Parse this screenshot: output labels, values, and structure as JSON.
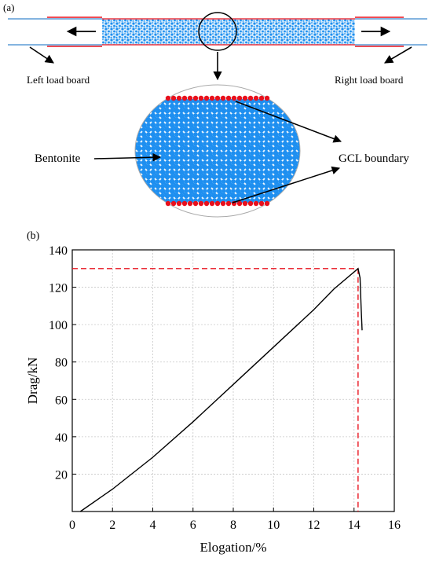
{
  "panel_a": {
    "label": "(a)",
    "left_board_label": "Left load board",
    "right_board_label": "Right load board",
    "bentonite_label": "Bentonite",
    "boundary_label": "GCL boundary",
    "colors": {
      "bentonite": "#1e8ff0",
      "boundary": "#e8101c",
      "board_line": "#5b9bd5"
    }
  },
  "panel_b": {
    "label": "(b)"
  },
  "chart_data": {
    "type": "line",
    "xlabel": "Elogation/%",
    "ylabel": "Drag/kN",
    "xlim": [
      0,
      16
    ],
    "ylim": [
      0,
      140
    ],
    "xticks": [
      0,
      2,
      4,
      6,
      8,
      10,
      12,
      14,
      16
    ],
    "yticks": [
      20,
      40,
      60,
      80,
      100,
      120,
      140
    ],
    "grid": true,
    "series": [
      {
        "color": "#000000",
        "points": [
          [
            0.4,
            0
          ],
          [
            2,
            12
          ],
          [
            4,
            29
          ],
          [
            6,
            48
          ],
          [
            8,
            68
          ],
          [
            10,
            88
          ],
          [
            12,
            108
          ],
          [
            13,
            119
          ],
          [
            14.2,
            130
          ],
          [
            14.3,
            125
          ],
          [
            14.35,
            110
          ],
          [
            14.4,
            97
          ]
        ]
      }
    ],
    "reference_lines": {
      "color": "#e8101c",
      "peak_x": 14.2,
      "peak_y": 130
    }
  }
}
